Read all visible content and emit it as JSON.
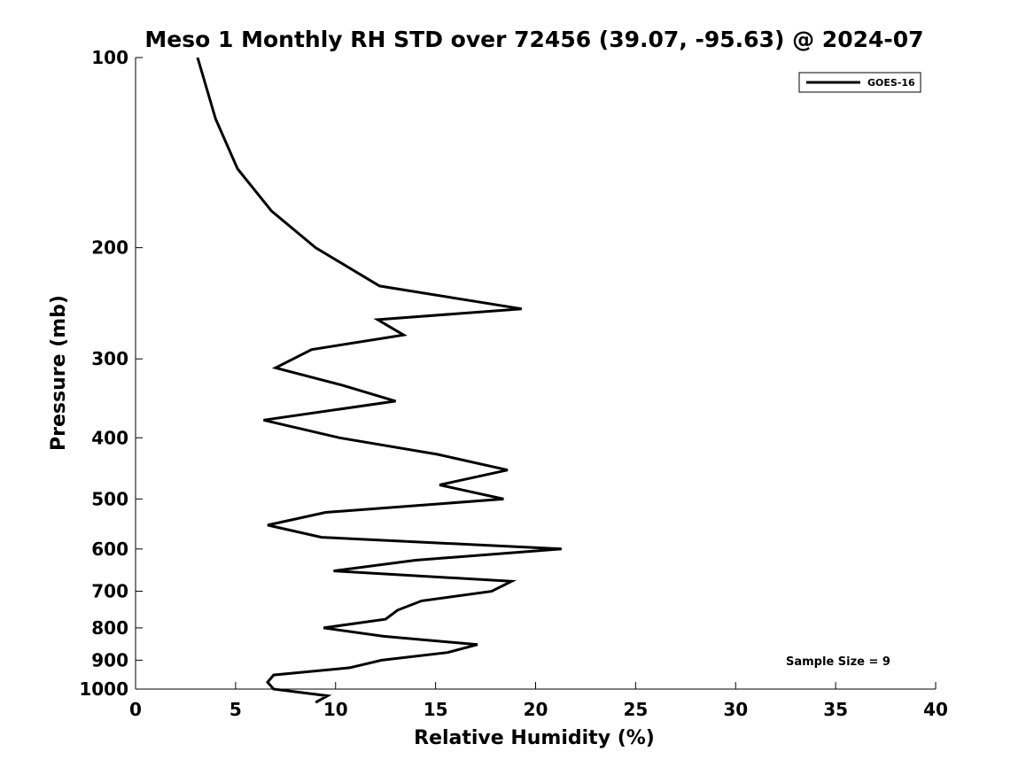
{
  "chart_data": {
    "type": "line",
    "title": "Meso 1 Monthly RH STD over 72456 (39.07, -95.63) @ 2024-07",
    "xlabel": "Relative Humidity (%)",
    "ylabel": "Pressure (mb)",
    "xlim": [
      0,
      40
    ],
    "ylim": [
      1000,
      100
    ],
    "y_scale": "log",
    "y_inverted": true,
    "x_ticks": [
      0,
      5,
      10,
      15,
      20,
      25,
      30,
      35,
      40
    ],
    "y_ticks": [
      100,
      200,
      300,
      400,
      500,
      600,
      700,
      800,
      900,
      1000
    ],
    "grid": false,
    "legend": {
      "placement": "top-right",
      "entries": [
        "GOES-16"
      ]
    },
    "annotation": "Sample Size = 9",
    "series": [
      {
        "name": "GOES-16",
        "color": "#000000",
        "points": [
          [
            3.1,
            100
          ],
          [
            4.0,
            125
          ],
          [
            5.1,
            150
          ],
          [
            6.8,
            175
          ],
          [
            9.0,
            200
          ],
          [
            12.2,
            230
          ],
          [
            19.3,
            250
          ],
          [
            12.1,
            260
          ],
          [
            13.4,
            275
          ],
          [
            8.8,
            290
          ],
          [
            7.0,
            310
          ],
          [
            10.3,
            330
          ],
          [
            13.0,
            350
          ],
          [
            6.4,
            375
          ],
          [
            10.2,
            400
          ],
          [
            15.1,
            425
          ],
          [
            18.6,
            450
          ],
          [
            15.2,
            475
          ],
          [
            18.4,
            500
          ],
          [
            9.5,
            525
          ],
          [
            6.6,
            550
          ],
          [
            9.3,
            575
          ],
          [
            21.3,
            600
          ],
          [
            14.0,
            625
          ],
          [
            9.9,
            650
          ],
          [
            18.8,
            675
          ],
          [
            17.8,
            700
          ],
          [
            14.3,
            725
          ],
          [
            13.1,
            750
          ],
          [
            12.5,
            775
          ],
          [
            9.4,
            800
          ],
          [
            12.4,
            825
          ],
          [
            17.1,
            850
          ],
          [
            15.6,
            875
          ],
          [
            12.3,
            900
          ],
          [
            10.7,
            925
          ],
          [
            6.9,
            950
          ],
          [
            6.6,
            975
          ],
          [
            6.9,
            1000
          ],
          [
            9.6,
            1025
          ],
          [
            9.0,
            1050
          ]
        ]
      }
    ]
  }
}
